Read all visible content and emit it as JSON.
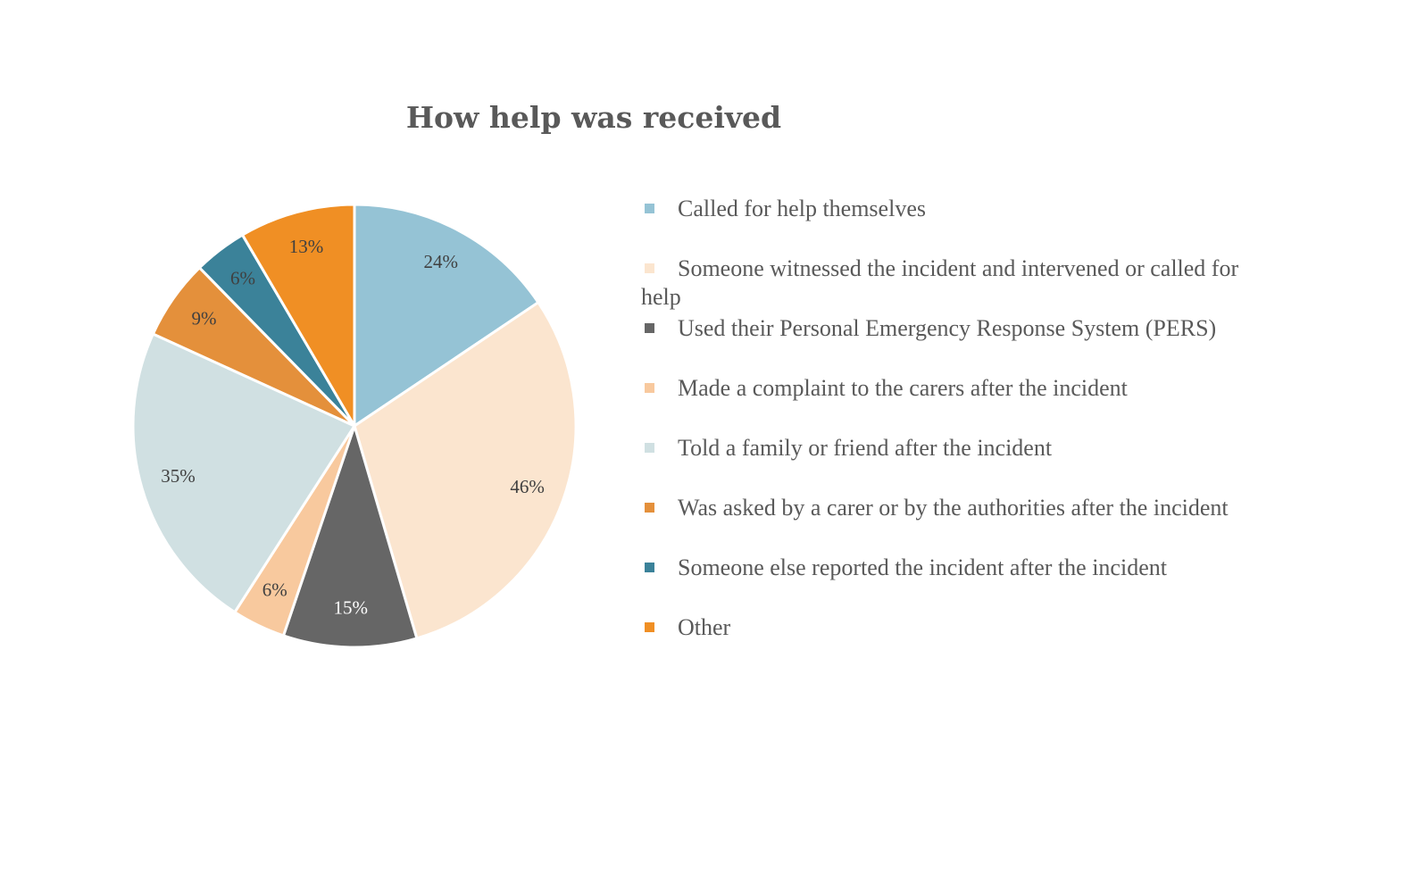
{
  "chart_data": {
    "type": "pie",
    "title": "How help was received",
    "categories": [
      "Called for help themselves",
      "Someone witnessed the incident and intervened or called for help",
      "Used their Personal Emergency Response System (PERS)",
      "Made a complaint to the carers after the incident",
      "Told a family or friend after the incident",
      "Was asked by a carer or by the authorities after the incident",
      "Someone else reported the incident after the incident",
      "Other"
    ],
    "values": [
      24,
      46,
      15,
      6,
      35,
      9,
      6,
      13
    ],
    "data_labels": [
      "24%",
      "46%",
      "15%",
      "6%",
      "35%",
      "9%",
      "6%",
      "13%"
    ],
    "colors": [
      "#95c3d5",
      "#fbe5cf",
      "#666666",
      "#f8c99e",
      "#d0e0e2",
      "#e4903b",
      "#3b8299",
      "#f08f24"
    ],
    "label_colors": [
      "#404040",
      "#404040",
      "#ffffff",
      "#404040",
      "#404040",
      "#404040",
      "#404040",
      "#404040"
    ],
    "start_angle_deg": 0,
    "direction": "clockwise",
    "legend_position": "right"
  }
}
